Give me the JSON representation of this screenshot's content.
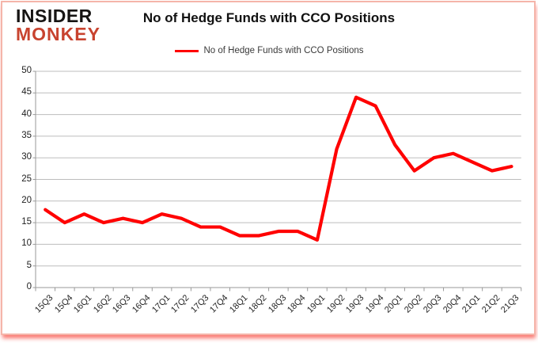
{
  "logo": {
    "line1": "INSIDER",
    "line2": "MONKEY"
  },
  "header": {
    "title": "No of Hedge Funds with CCO Positions"
  },
  "legend": {
    "label": "No of Hedge Funds with CCO Positions",
    "line_color": "#ff0000"
  },
  "chart_data": {
    "type": "line",
    "title": "No of Hedge Funds with CCO Positions",
    "categories": [
      "15Q3",
      "15Q4",
      "16Q1",
      "16Q2",
      "16Q3",
      "16Q4",
      "17Q1",
      "17Q2",
      "17Q3",
      "17Q4",
      "18Q1",
      "18Q2",
      "18Q3",
      "18Q4",
      "19Q1",
      "19Q2",
      "19Q3",
      "19Q4",
      "20Q1",
      "20Q2",
      "20Q3",
      "20Q4",
      "21Q1",
      "21Q2",
      "21Q3"
    ],
    "series": [
      {
        "name": "No of Hedge Funds with CCO Positions",
        "color": "#ff0000",
        "values": [
          18,
          15,
          17,
          15,
          16,
          15,
          17,
          16,
          14,
          14,
          12,
          12,
          13,
          13,
          11,
          32,
          44,
          42,
          33,
          27,
          30,
          31,
          29,
          27,
          28
        ]
      }
    ],
    "xlabel": "",
    "ylabel": "",
    "ylim": [
      0,
      50
    ],
    "yticks": [
      0,
      5,
      10,
      15,
      20,
      25,
      30,
      35,
      40,
      45,
      50
    ],
    "grid": true,
    "legend_position": "top-center"
  },
  "colors": {
    "gridline": "#bdbdbd",
    "axis": "#9a9a9a",
    "card_border": "#f5b5aa",
    "card_shadow": "#f73023",
    "logo_red": "#c8432f"
  }
}
